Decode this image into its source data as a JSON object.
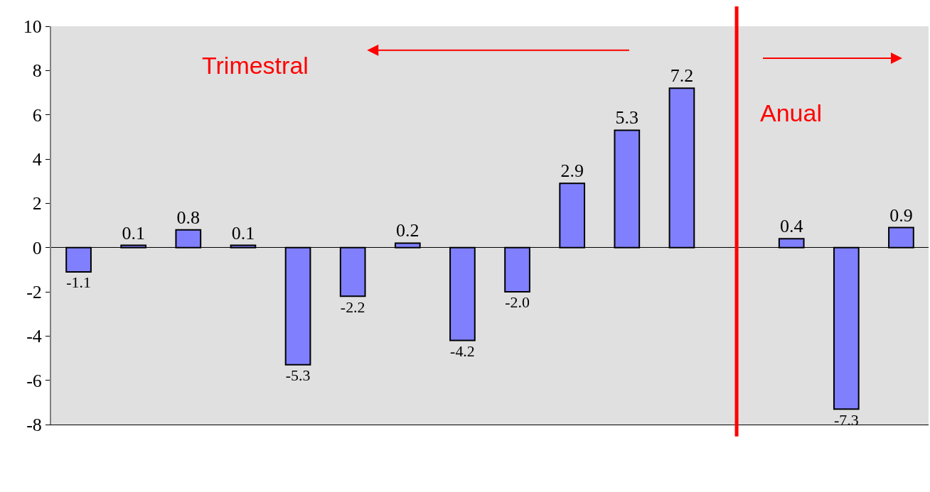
{
  "chart_data": {
    "type": "bar",
    "categories": [
      null,
      null,
      null,
      null,
      null,
      null,
      null,
      null,
      null,
      null,
      null,
      null,
      null,
      null,
      null,
      null
    ],
    "values": [
      -1.1,
      0.1,
      0.8,
      0.1,
      -5.3,
      -2.2,
      0.2,
      -4.2,
      -2.0,
      2.9,
      5.3,
      7.2,
      null,
      0.4,
      -7.3,
      0.9
    ],
    "value_labels": [
      "-1.1",
      "0.1",
      "0.8",
      "0.1",
      "-5.3",
      "-2.2",
      "0.2",
      "-4.2",
      "-2.0",
      "2.9",
      "5.3",
      "7.2",
      null,
      "0.4",
      "-7.3",
      "0.9"
    ],
    "color": "#8080ff",
    "ylim": [
      -8,
      10
    ],
    "yticks": [
      -8,
      -6,
      -4,
      -2,
      0,
      2,
      4,
      6,
      8,
      10
    ],
    "annotations": [
      "Trimestral",
      "Anual"
    ]
  }
}
